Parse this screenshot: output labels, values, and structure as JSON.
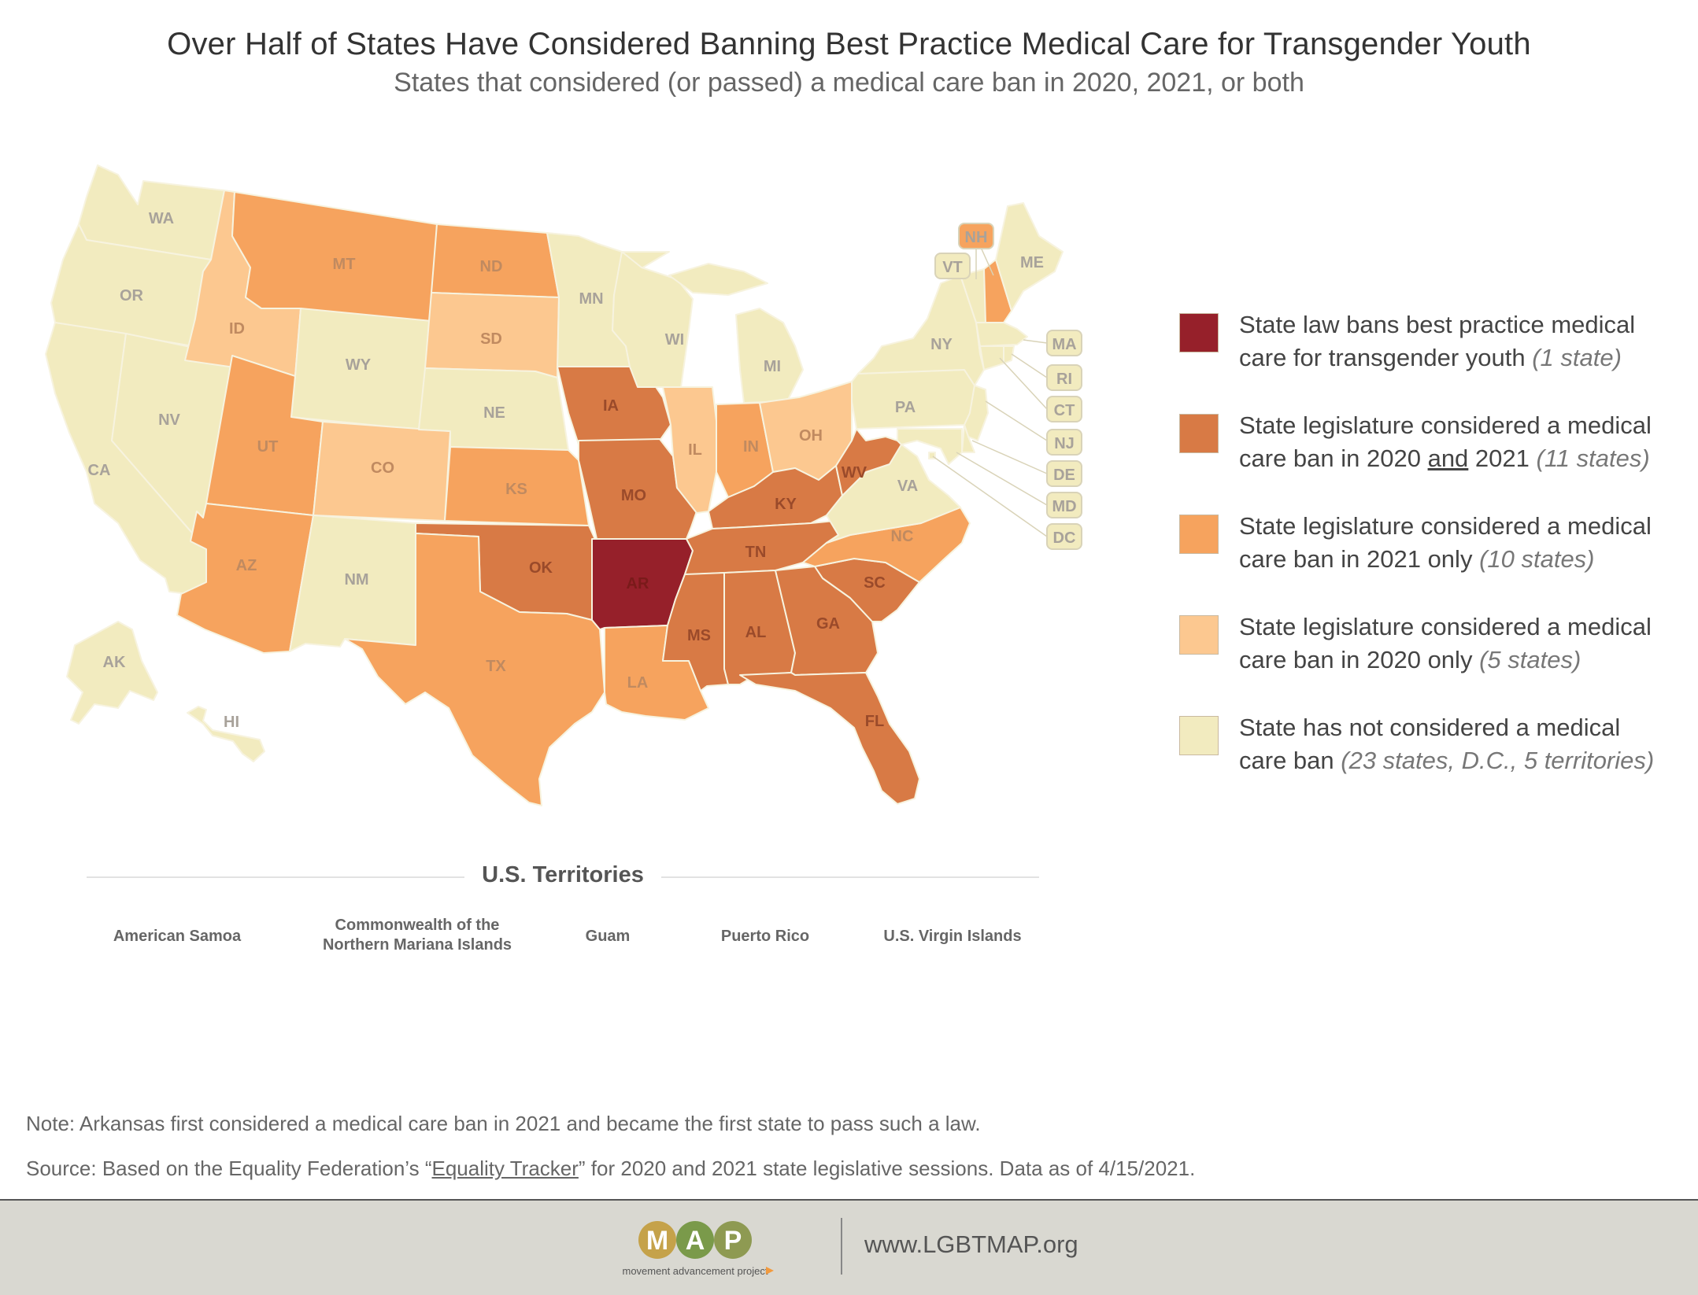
{
  "title": "Over Half of States Have Considered Banning Best Practice Medical Care for Transgender Youth",
  "subtitle": "States that considered (or passed) a medical care ban in 2020, 2021, or both",
  "colors": {
    "banned": "#96202a",
    "both_years": "#d87a45",
    "only_2021": "#f6a35e",
    "only_2020": "#fcc890",
    "none": "#f2ebbf",
    "border": "#f7f3df",
    "label_dark": "#7a1a1a",
    "label_mid": "#9a4a2a",
    "label_light": "#c08a60",
    "label_none": "#a8a29a"
  },
  "legend": [
    {
      "key": "banned",
      "line1": "State law bans best practice medical",
      "line2": "care for transgender youth",
      "count": "(1 state)"
    },
    {
      "key": "both_years",
      "line1": "State legislature considered a medical",
      "line2_pre": "care ban in 2020 ",
      "line2_u": "and",
      "line2_post": " 2021",
      "count": "(11 states)"
    },
    {
      "key": "only_2021",
      "line1": "State legislature considered a medical",
      "line2": "care ban in 2021 only",
      "count": "(10 states)"
    },
    {
      "key": "only_2020",
      "line1": "State legislature considered a medical",
      "line2": "care ban in 2020 only",
      "count": "(5 states)"
    },
    {
      "key": "none",
      "line1": "State has not considered a medical",
      "line2": "care ban",
      "count": "(23 states, D.C., 5 territories)"
    }
  ],
  "states": {
    "WA": "none",
    "OR": "none",
    "CA": "none",
    "NV": "none",
    "ID": "only_2020",
    "MT": "only_2021",
    "WY": "none",
    "UT": "only_2021",
    "AZ": "only_2021",
    "CO": "only_2020",
    "NM": "none",
    "ND": "only_2021",
    "SD": "only_2020",
    "NE": "none",
    "KS": "only_2021",
    "OK": "both_years",
    "TX": "only_2021",
    "MN": "none",
    "IA": "both_years",
    "MO": "both_years",
    "AR": "banned",
    "LA": "only_2021",
    "WI": "none",
    "IL": "only_2020",
    "MI": "none",
    "IN": "only_2021",
    "OH": "only_2020",
    "KY": "both_years",
    "TN": "both_years",
    "MS": "both_years",
    "AL": "both_years",
    "GA": "both_years",
    "FL": "both_years",
    "SC": "both_years",
    "NC": "only_2021",
    "VA": "none",
    "WV": "both_years",
    "PA": "none",
    "NY": "none",
    "ME": "none",
    "NH": "only_2021",
    "VT": "none",
    "MA": "none",
    "RI": "none",
    "CT": "none",
    "NJ": "none",
    "DE": "none",
    "MD": "none",
    "DC": "none",
    "AK": "none",
    "HI": "none"
  },
  "callout_labels": [
    "NH",
    "VT",
    "MA",
    "RI",
    "CT",
    "NJ",
    "DE",
    "MD",
    "DC"
  ],
  "territories": {
    "title": "U.S. Territories",
    "items": [
      "American Samoa",
      "Commonwealth of the Northern Mariana Islands",
      "Guam",
      "Puerto Rico",
      "U.S. Virgin Islands"
    ],
    "status": "none"
  },
  "note": "Note: Arkansas first considered a medical care ban in 2021 and became the first state to pass such a law.",
  "source_pre": "Source: Based on the Equality Federation’s “",
  "source_link": "Equality Tracker",
  "source_post": "” for 2020 and 2021 state legislative sessions. Data as of 4/15/2021.",
  "footer": {
    "logo_text": "MAP",
    "logo_tagline": "movement advancement project",
    "url": "www.LGBTMAP.org"
  }
}
